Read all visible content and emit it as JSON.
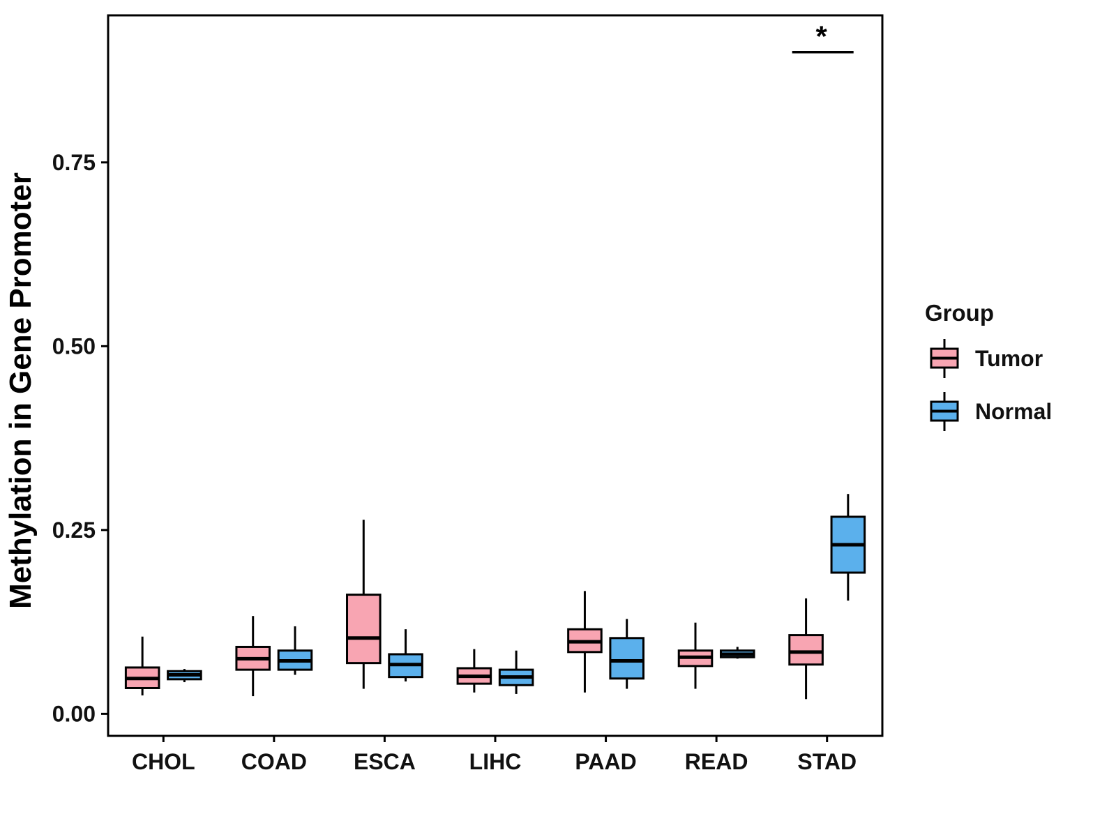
{
  "figure": {
    "kind": "grouped boxplot"
  },
  "chart_data": {
    "type": "boxplot",
    "title": "",
    "xlabel": "",
    "ylabel": "Methylation in Gene Promoter",
    "legend_title": "Group",
    "legend_position": "right",
    "grid": false,
    "categories": [
      "CHOL",
      "COAD",
      "ESCA",
      "LIHC",
      "PAAD",
      "READ",
      "STAD"
    ],
    "ylim": [
      -0.03,
      0.95
    ],
    "ytick_values": [
      0.0,
      0.25,
      0.5,
      0.75
    ],
    "ytick_labels": [
      "0.00",
      "0.25",
      "0.50",
      "0.75"
    ],
    "box_stats_order": [
      "low",
      "q1",
      "median",
      "q3",
      "high"
    ],
    "series": [
      {
        "name": "Tumor",
        "color": "#F8A5B2",
        "boxes": [
          [
            0.025,
            0.035,
            0.048,
            0.063,
            0.105
          ],
          [
            0.024,
            0.06,
            0.075,
            0.091,
            0.133
          ],
          [
            0.034,
            0.069,
            0.103,
            0.162,
            0.264
          ],
          [
            0.029,
            0.041,
            0.051,
            0.062,
            0.088
          ],
          [
            0.029,
            0.084,
            0.098,
            0.115,
            0.167
          ],
          [
            0.034,
            0.065,
            0.077,
            0.086,
            0.124
          ],
          [
            0.02,
            0.067,
            0.084,
            0.107,
            0.157
          ]
        ]
      },
      {
        "name": "Normal",
        "color": "#5BB0EC",
        "boxes": [
          [
            0.043,
            0.047,
            0.053,
            0.058,
            0.061
          ],
          [
            0.053,
            0.06,
            0.072,
            0.086,
            0.119
          ],
          [
            0.044,
            0.05,
            0.067,
            0.081,
            0.115
          ],
          [
            0.027,
            0.039,
            0.05,
            0.06,
            0.086
          ],
          [
            0.034,
            0.048,
            0.072,
            0.103,
            0.129
          ],
          [
            0.075,
            0.077,
            0.081,
            0.086,
            0.091
          ],
          [
            0.154,
            0.192,
            0.23,
            0.268,
            0.299
          ]
        ]
      }
    ],
    "significance": {
      "label": "*",
      "category": "STAD",
      "bar_y": 0.9
    }
  }
}
